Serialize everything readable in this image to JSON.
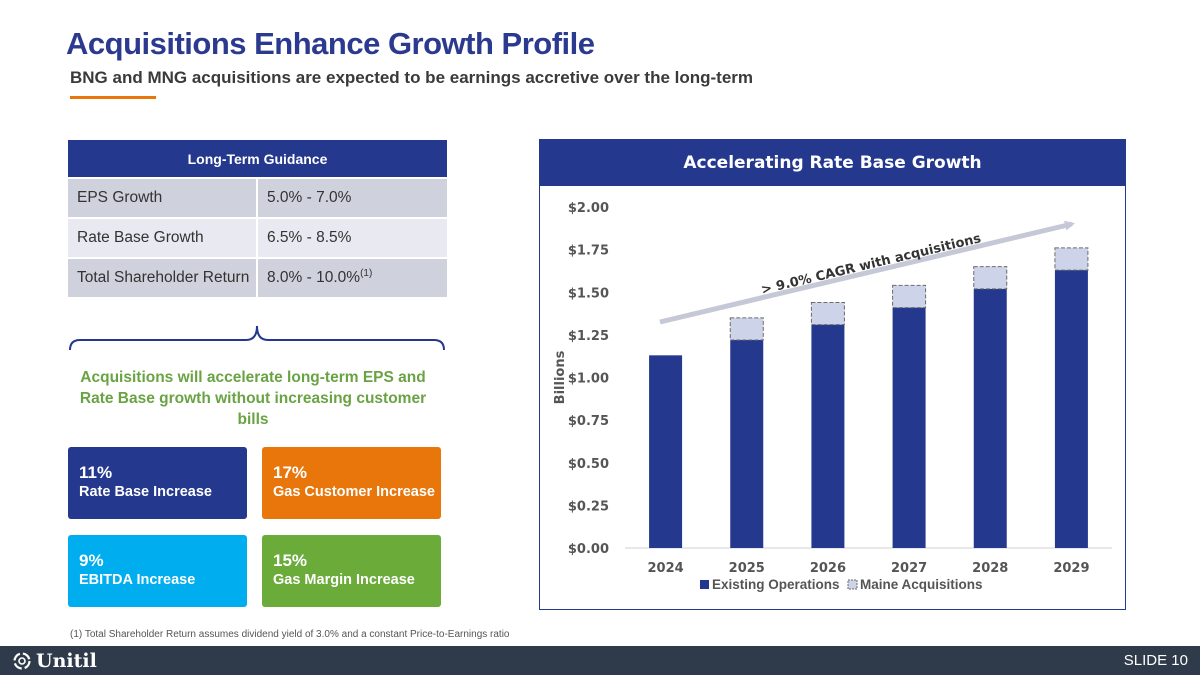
{
  "header": {
    "title": "Acquisitions Enhance Growth Profile",
    "subtitle": "BNG and MNG acquisitions are expected to be earnings accretive over the long-term",
    "accent_color": "#e8760a"
  },
  "guidance": {
    "heading": "Long-Term Guidance",
    "rows": [
      {
        "metric": "EPS Growth",
        "value": "5.0% - 7.0%",
        "note": ""
      },
      {
        "metric": "Rate Base Growth",
        "value": "6.5% - 8.5%",
        "note": ""
      },
      {
        "metric": "Total Shareholder Return",
        "value": "8.0% - 10.0%",
        "note": "(1)"
      }
    ]
  },
  "brace_note": {
    "line1": "Acquisitions will accelerate long-term EPS and",
    "line2": "Rate Base growth without  increasing customer bills"
  },
  "kpis": [
    {
      "pct": "11%",
      "label": "Rate Base Increase",
      "color": "#24388e"
    },
    {
      "pct": "17%",
      "label": "Gas Customer Increase",
      "color": "#e8760a"
    },
    {
      "pct": "9%",
      "label": "EBITDA Increase",
      "color": "#00aeef"
    },
    {
      "pct": "15%",
      "label": "Gas Margin Increase",
      "color": "#6aab3a"
    }
  ],
  "footnote": "(1) Total Shareholder Return assumes dividend yield of 3.0% and a constant Price-to-Earnings ratio",
  "chart_data": {
    "type": "bar",
    "stacked": true,
    "title": "Accelerating Rate Base Growth",
    "ylabel": "Billions",
    "xlabel": "",
    "categories": [
      "2024",
      "2025",
      "2026",
      "2027",
      "2028",
      "2029"
    ],
    "series": [
      {
        "name": "Existing Operations",
        "values": [
          1.13,
          1.22,
          1.31,
          1.41,
          1.52,
          1.63
        ],
        "color": "#24388e"
      },
      {
        "name": "Maine Acquisitions",
        "values": [
          0,
          0.13,
          0.13,
          0.13,
          0.13,
          0.13
        ],
        "color": "#cdd3e8"
      }
    ],
    "ylim": [
      0,
      2.0
    ],
    "yticks": [
      0,
      0.25,
      0.5,
      0.75,
      1.0,
      1.25,
      1.5,
      1.75,
      2.0
    ],
    "ytick_labels": [
      "$0.00",
      "$0.25",
      "$0.50",
      "$0.75",
      "$1.00",
      "$1.25",
      "$1.50",
      "$1.75",
      "$2.00"
    ],
    "annotation": "> 9.0% CAGR with acquisitions",
    "legend_position": "bottom",
    "grid": false
  },
  "footer": {
    "logo_text": "Unitil",
    "slide_label": "SLIDE 10"
  }
}
